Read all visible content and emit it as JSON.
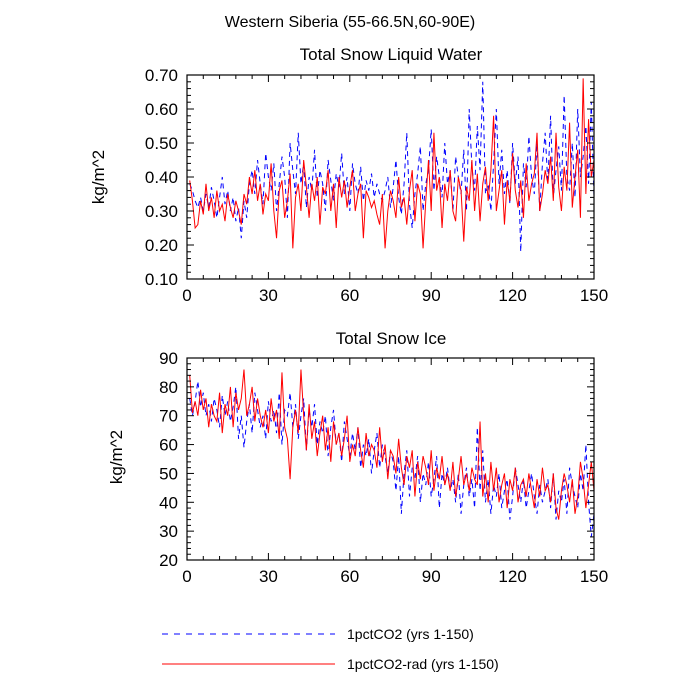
{
  "main_title": "Western Siberia (55-66.5N,60-90E)",
  "legend": [
    {
      "label": "1pctCO2 (yrs 1-150)",
      "color": "#0000ff",
      "dash": "dashed"
    },
    {
      "label": "1pctCO2-rad (yrs 1-150)",
      "color": "#ff0000",
      "dash": "solid"
    }
  ],
  "chart_data": [
    {
      "type": "line",
      "title": "Total Snow Liquid Water",
      "xlabel": "",
      "ylabel": "kg/m^2",
      "xlim": [
        0,
        150
      ],
      "ylim": [
        0.1,
        0.7
      ],
      "x_ticks": [
        "0",
        "30",
        "60",
        "90",
        "120",
        "150"
      ],
      "y_ticks": [
        "0.10",
        "0.20",
        "0.30",
        "0.40",
        "0.50",
        "0.60",
        "0.70"
      ],
      "x_start": 1,
      "series": [
        {
          "name": "1pctCO2 (yrs 1-150)",
          "color": "#0000ff",
          "values": [
            0.38,
            0.36,
            0.33,
            0.31,
            0.34,
            0.3,
            0.35,
            0.31,
            0.37,
            0.33,
            0.28,
            0.34,
            0.4,
            0.32,
            0.36,
            0.3,
            0.34,
            0.27,
            0.31,
            0.22,
            0.33,
            0.28,
            0.38,
            0.42,
            0.35,
            0.45,
            0.38,
            0.32,
            0.47,
            0.4,
            0.36,
            0.44,
            0.3,
            0.38,
            0.46,
            0.4,
            0.28,
            0.5,
            0.42,
            0.35,
            0.53,
            0.38,
            0.44,
            0.31,
            0.4,
            0.36,
            0.48,
            0.34,
            0.42,
            0.38,
            0.3,
            0.45,
            0.39,
            0.33,
            0.41,
            0.37,
            0.47,
            0.35,
            0.4,
            0.3,
            0.44,
            0.38,
            0.35,
            0.43,
            0.33,
            0.39,
            0.36,
            0.41,
            0.34,
            0.38,
            0.35,
            0.33,
            0.36,
            0.4,
            0.31,
            0.37,
            0.45,
            0.34,
            0.29,
            0.38,
            0.53,
            0.32,
            0.25,
            0.35,
            0.41,
            0.49,
            0.3,
            0.38,
            0.42,
            0.54,
            0.36,
            0.46,
            0.4,
            0.34,
            0.5,
            0.38,
            0.42,
            0.3,
            0.46,
            0.4,
            0.35,
            0.48,
            0.3,
            0.6,
            0.43,
            0.36,
            0.55,
            0.42,
            0.68,
            0.35,
            0.38,
            0.3,
            0.44,
            0.6,
            0.38,
            0.48,
            0.35,
            0.42,
            0.32,
            0.5,
            0.38,
            0.46,
            0.18,
            0.44,
            0.37,
            0.52,
            0.4,
            0.35,
            0.5,
            0.3,
            0.44,
            0.53,
            0.38,
            0.58,
            0.34,
            0.42,
            0.49,
            0.36,
            0.64,
            0.4,
            0.36,
            0.5,
            0.34,
            0.6,
            0.4,
            0.46,
            0.55,
            0.38,
            0.62,
            0.34
          ]
        },
        {
          "name": "1pctCO2-rad (yrs 1-150)",
          "color": "#ff0000",
          "values": [
            0.39,
            0.33,
            0.25,
            0.26,
            0.33,
            0.29,
            0.38,
            0.3,
            0.34,
            0.28,
            0.36,
            0.3,
            0.32,
            0.27,
            0.35,
            0.31,
            0.28,
            0.33,
            0.3,
            0.26,
            0.35,
            0.32,
            0.4,
            0.35,
            0.42,
            0.33,
            0.38,
            0.29,
            0.35,
            0.33,
            0.44,
            0.3,
            0.22,
            0.36,
            0.39,
            0.28,
            0.33,
            0.41,
            0.19,
            0.34,
            0.38,
            0.3,
            0.45,
            0.37,
            0.28,
            0.38,
            0.33,
            0.4,
            0.26,
            0.37,
            0.35,
            0.42,
            0.3,
            0.38,
            0.25,
            0.4,
            0.34,
            0.39,
            0.31,
            0.37,
            0.42,
            0.3,
            0.35,
            0.38,
            0.22,
            0.36,
            0.34,
            0.31,
            0.33,
            0.29,
            0.26,
            0.35,
            0.19,
            0.3,
            0.36,
            0.33,
            0.28,
            0.4,
            0.31,
            0.34,
            0.26,
            0.36,
            0.42,
            0.27,
            0.38,
            0.35,
            0.19,
            0.33,
            0.45,
            0.3,
            0.53,
            0.36,
            0.4,
            0.25,
            0.38,
            0.33,
            0.42,
            0.3,
            0.27,
            0.4,
            0.36,
            0.21,
            0.37,
            0.33,
            0.45,
            0.3,
            0.41,
            0.27,
            0.38,
            0.43,
            0.33,
            0.42,
            0.58,
            0.3,
            0.36,
            0.42,
            0.26,
            0.39,
            0.33,
            0.47,
            0.36,
            0.31,
            0.39,
            0.28,
            0.44,
            0.33,
            0.38,
            0.41,
            0.53,
            0.3,
            0.35,
            0.42,
            0.38,
            0.46,
            0.33,
            0.53,
            0.37,
            0.3,
            0.43,
            0.36,
            0.56,
            0.31,
            0.4,
            0.48,
            0.28,
            0.69,
            0.35,
            0.57,
            0.4,
            0.45
          ]
        }
      ]
    },
    {
      "type": "line",
      "title": "Total Snow Ice",
      "xlabel": "",
      "ylabel": "kg/m^2",
      "xlim": [
        0,
        150
      ],
      "ylim": [
        20,
        90
      ],
      "x_ticks": [
        "0",
        "30",
        "60",
        "90",
        "120",
        "150"
      ],
      "y_ticks": [
        "20",
        "30",
        "40",
        "50",
        "60",
        "70",
        "80",
        "90"
      ],
      "x_start": 1,
      "series": [
        {
          "name": "1pctCO2 (yrs 1-150)",
          "color": "#0000ff",
          "values": [
            76,
            70,
            75,
            82,
            73,
            78,
            70,
            74,
            68,
            76,
            72,
            66,
            77,
            70,
            75,
            68,
            73,
            80,
            62,
            70,
            59,
            68,
            74,
            64,
            78,
            72,
            66,
            70,
            62,
            75,
            68,
            72,
            64,
            78,
            60,
            72,
            70,
            78,
            66,
            74,
            62,
            70,
            76,
            58,
            72,
            66,
            74,
            60,
            68,
            64,
            70,
            56,
            66,
            72,
            60,
            64,
            54,
            68,
            62,
            56,
            64,
            58,
            66,
            52,
            60,
            56,
            62,
            50,
            58,
            64,
            52,
            60,
            56,
            50,
            58,
            54,
            44,
            56,
            36,
            50,
            58,
            42,
            52,
            48,
            56,
            40,
            50,
            46,
            54,
            42,
            48,
            56,
            38,
            50,
            46,
            52,
            44,
            48,
            40,
            50,
            36,
            46,
            52,
            42,
            48,
            38,
            66,
            44,
            58,
            40,
            48,
            36,
            46,
            42,
            50,
            38,
            44,
            48,
            34,
            42,
            52,
            46,
            40,
            48,
            38,
            44,
            50,
            42,
            36,
            46,
            40,
            44,
            48,
            38,
            50,
            34,
            44,
            40,
            48,
            36,
            52,
            46,
            42,
            38,
            50,
            44,
            60,
            40,
            28,
            36
          ]
        },
        {
          "name": "1pctCO2-rad (yrs 1-150)",
          "color": "#ff0000",
          "values": [
            84,
            71,
            75,
            70,
            79,
            72,
            76,
            66,
            74,
            70,
            68,
            78,
            64,
            74,
            70,
            80,
            66,
            78,
            72,
            76,
            86,
            70,
            74,
            80,
            68,
            76,
            70,
            66,
            72,
            64,
            76,
            68,
            72,
            62,
            85,
            66,
            62,
            48,
            66,
            72,
            64,
            86,
            70,
            58,
            74,
            62,
            68,
            56,
            64,
            70,
            58,
            66,
            54,
            68,
            60,
            64,
            56,
            62,
            70,
            54,
            60,
            56,
            66,
            58,
            52,
            64,
            56,
            60,
            58,
            52,
            66,
            54,
            60,
            48,
            58,
            56,
            50,
            62,
            52,
            46,
            56,
            52,
            58,
            42,
            54,
            48,
            56,
            52,
            46,
            58,
            44,
            52,
            48,
            56,
            46,
            50,
            44,
            54,
            42,
            48,
            56,
            46,
            50,
            44,
            52,
            48,
            46,
            68,
            42,
            50,
            40,
            54,
            44,
            52,
            40,
            46,
            50,
            38,
            48,
            44,
            52,
            40,
            46,
            48,
            42,
            50,
            44,
            38,
            48,
            42,
            52,
            44,
            46,
            40,
            50,
            38,
            34,
            44,
            50,
            46,
            40,
            48,
            36,
            42,
            54,
            48,
            38,
            46,
            54,
            44
          ]
        }
      ]
    }
  ]
}
